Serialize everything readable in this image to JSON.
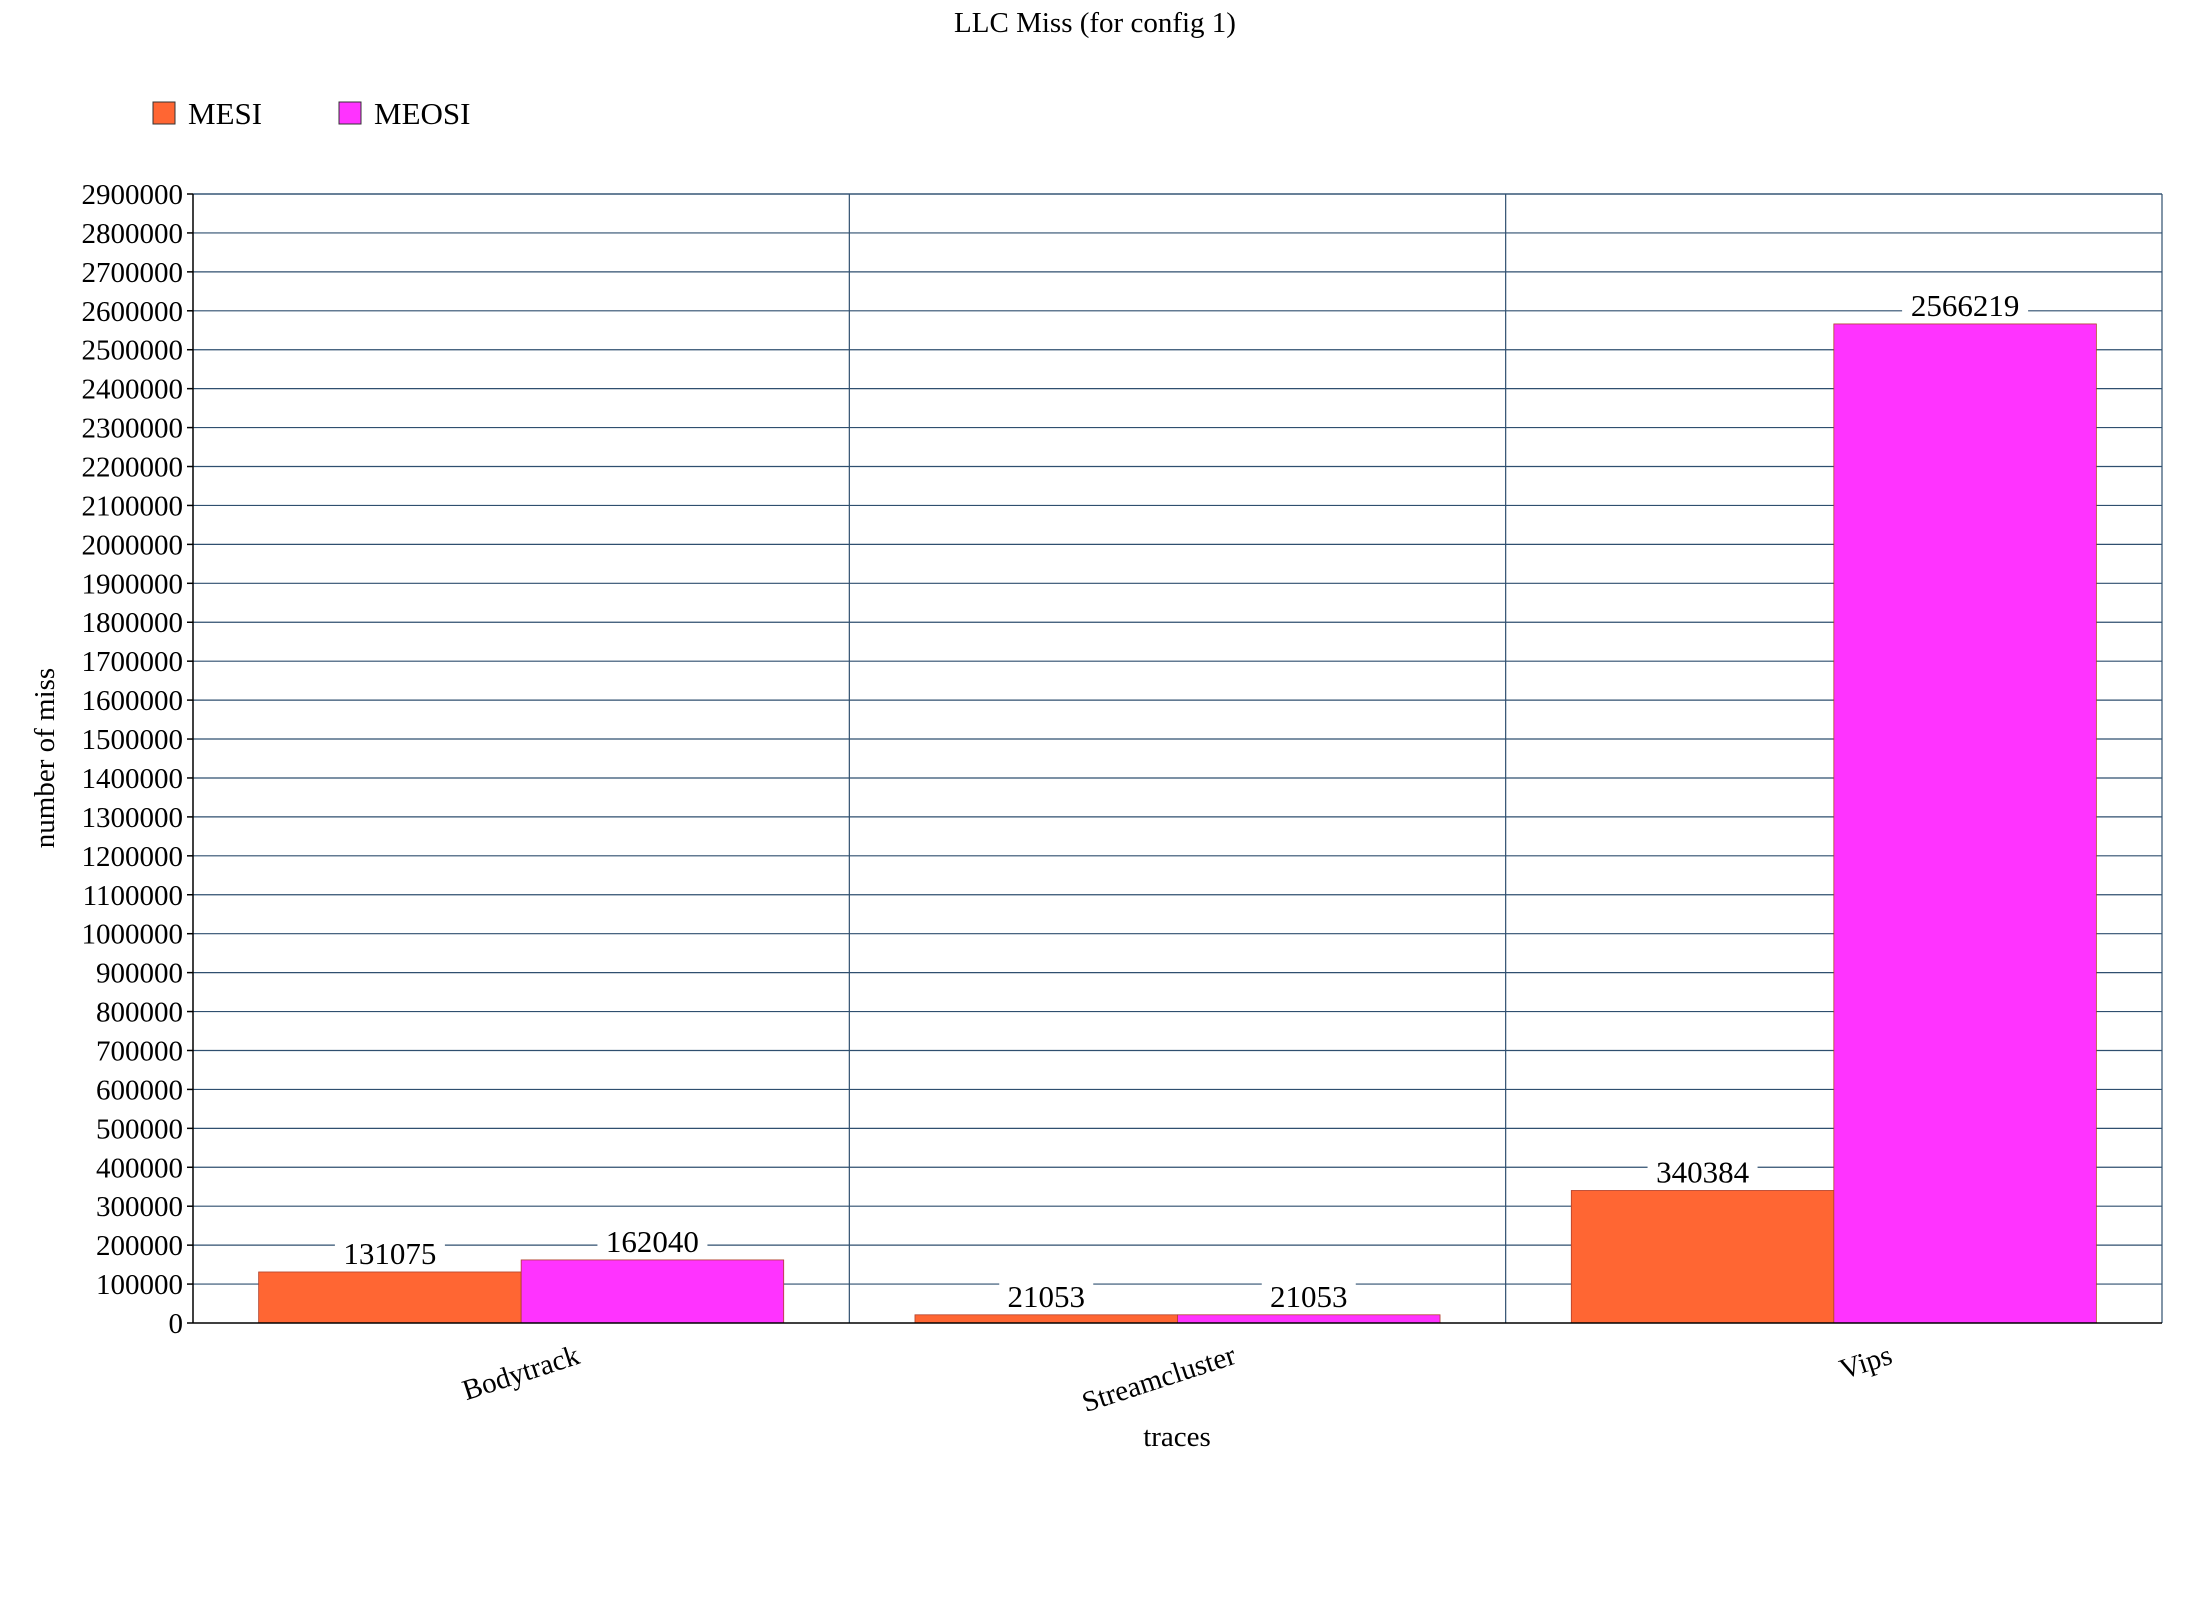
{
  "chart_data": {
    "type": "bar",
    "title": "LLC Miss (for config 1)",
    "xlabel": "traces",
    "ylabel": "number of miss",
    "categories": [
      "Bodytrack",
      "Streamcluster",
      "Vips"
    ],
    "series": [
      {
        "name": "MESI",
        "color": "#ff6633",
        "values": [
          131075,
          21053,
          340384
        ]
      },
      {
        "name": "MEOSI",
        "color": "#ff33ff",
        "values": [
          162040,
          21053,
          2566219
        ]
      }
    ],
    "ylim": [
      0,
      2900000
    ],
    "ytick_step": 100000,
    "yticks": [
      "0",
      "100000",
      "200000",
      "300000",
      "400000",
      "500000",
      "600000",
      "700000",
      "800000",
      "900000",
      "1000000",
      "1100000",
      "1200000",
      "1300000",
      "1400000",
      "1500000",
      "1600000",
      "1700000",
      "1800000",
      "1900000",
      "2000000",
      "2100000",
      "2200000",
      "2300000",
      "2400000",
      "2500000",
      "2600000",
      "2700000",
      "2800000",
      "2900000"
    ],
    "grid": true,
    "legend_position": "top-left",
    "data_labels": true,
    "gridline_color": "#2f4f6f",
    "axis_color": "#000000"
  }
}
